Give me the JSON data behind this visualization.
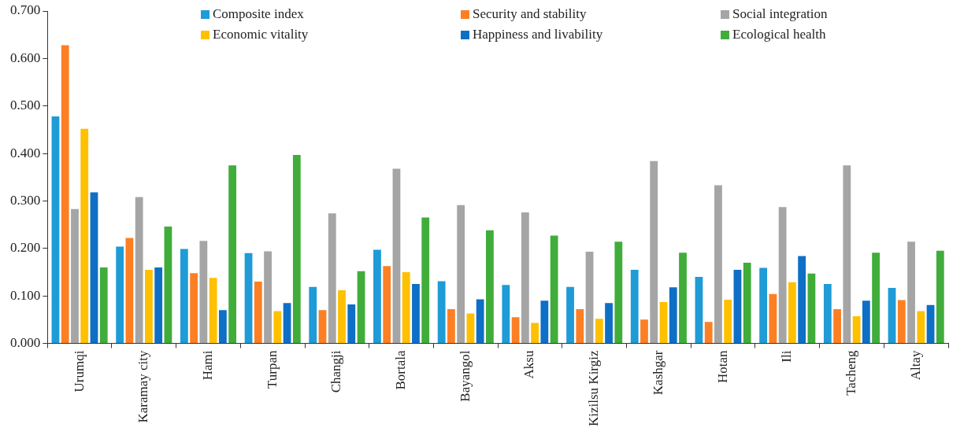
{
  "chart_data": {
    "type": "bar",
    "categories": [
      "Urumqi",
      "Karamay city",
      "Hami",
      "Turpan",
      "Changji",
      "Bortala",
      "Bayangol",
      "Aksu",
      "Kizilsu Kirgiz",
      "Kashgar",
      "Hotan",
      "Ili",
      "Tacheng",
      "Altay"
    ],
    "series": [
      {
        "name": "Composite index",
        "color": "#1f9bd7",
        "values": [
          0.478,
          0.204,
          0.199,
          0.19,
          0.119,
          0.197,
          0.131,
          0.123,
          0.119,
          0.155,
          0.14,
          0.159,
          0.125,
          0.117
        ]
      },
      {
        "name": "Security and stability",
        "color": "#fd7f24",
        "values": [
          0.628,
          0.222,
          0.148,
          0.13,
          0.07,
          0.163,
          0.072,
          0.055,
          0.072,
          0.05,
          0.045,
          0.104,
          0.072,
          0.091
        ]
      },
      {
        "name": "Social integration",
        "color": "#a5a5a5",
        "values": [
          0.283,
          0.308,
          0.216,
          0.194,
          0.274,
          0.368,
          0.291,
          0.276,
          0.193,
          0.384,
          0.333,
          0.287,
          0.375,
          0.214
        ]
      },
      {
        "name": "Economic vitality",
        "color": "#ffc000",
        "values": [
          0.452,
          0.155,
          0.138,
          0.068,
          0.112,
          0.15,
          0.063,
          0.043,
          0.052,
          0.087,
          0.092,
          0.129,
          0.057,
          0.068
        ]
      },
      {
        "name": "Happiness and livability",
        "color": "#0e6fc6",
        "values": [
          0.318,
          0.16,
          0.07,
          0.085,
          0.082,
          0.125,
          0.093,
          0.09,
          0.085,
          0.118,
          0.155,
          0.184,
          0.09,
          0.081
        ]
      },
      {
        "name": "Ecological health",
        "color": "#40ad3a",
        "values": [
          0.16,
          0.246,
          0.375,
          0.397,
          0.152,
          0.265,
          0.238,
          0.227,
          0.214,
          0.191,
          0.17,
          0.147,
          0.191,
          0.195
        ]
      }
    ],
    "ylim": [
      0,
      0.7
    ],
    "yticks": [
      {
        "value": 0,
        "label": "0.000"
      },
      {
        "value": 0.1,
        "label": "0.100"
      },
      {
        "value": 0.2,
        "label": "0.200"
      },
      {
        "value": 0.3,
        "label": "0.300"
      },
      {
        "value": 0.4,
        "label": "0.400"
      },
      {
        "value": 0.5,
        "label": "0.500"
      },
      {
        "value": 0.6,
        "label": "0.600"
      },
      {
        "value": 0.7,
        "label": "0.700"
      }
    ],
    "grid": false,
    "legend": "top"
  }
}
